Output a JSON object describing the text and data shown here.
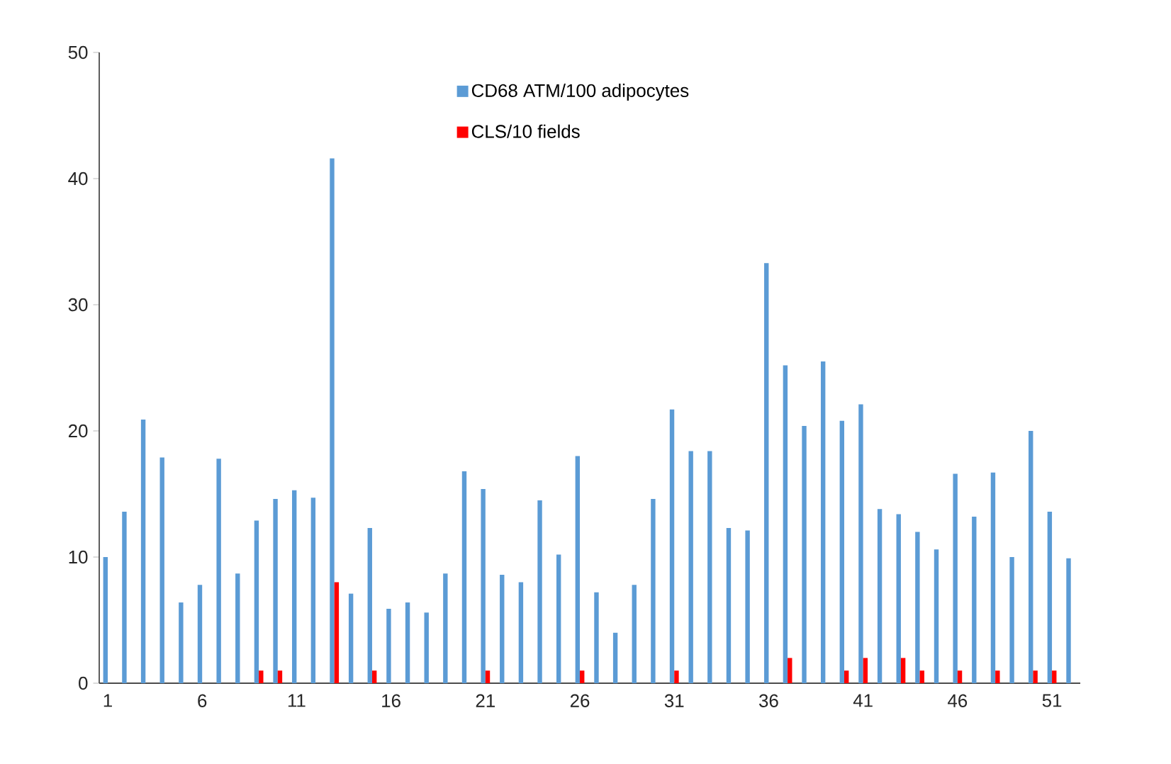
{
  "chart_data": {
    "type": "bar",
    "categories": [
      "1",
      null,
      null,
      null,
      null,
      "6",
      null,
      null,
      null,
      null,
      "11",
      null,
      null,
      null,
      null,
      "16",
      null,
      null,
      null,
      null,
      "21",
      null,
      null,
      null,
      null,
      "26",
      null,
      null,
      null,
      null,
      "31",
      null,
      null,
      null,
      null,
      "36",
      null,
      null,
      null,
      null,
      "41",
      null,
      null,
      null,
      null,
      "46",
      null,
      null,
      null,
      null,
      "51",
      null
    ],
    "series": [
      {
        "name": "CD68 ATM/100 adipocytes",
        "color": "#5b9bd5",
        "values": [
          10,
          13.6,
          20.9,
          17.9,
          6.4,
          7.8,
          17.8,
          8.7,
          12.9,
          14.6,
          15.3,
          14.7,
          41.6,
          7.1,
          12.3,
          5.9,
          6.4,
          5.6,
          8.7,
          16.8,
          15.4,
          8.6,
          8.0,
          14.5,
          10.2,
          18.0,
          7.2,
          4.0,
          7.8,
          14.6,
          21.7,
          18.4,
          18.4,
          12.3,
          12.1,
          33.3,
          25.2,
          20.4,
          25.5,
          20.8,
          22.1,
          13.8,
          13.4,
          12.0,
          10.6,
          16.6,
          13.2,
          16.7,
          10.0,
          20.0,
          13.6,
          9.9
        ]
      },
      {
        "name": "CLS/10 fields",
        "color": "#ff0000",
        "values": [
          0,
          0,
          0,
          0,
          0,
          0,
          0,
          0,
          1,
          1,
          0,
          0,
          8,
          0,
          1,
          0,
          0,
          0,
          0,
          0,
          1,
          0,
          0,
          0,
          0,
          1,
          0,
          0,
          0,
          0,
          1,
          0,
          0,
          0,
          0,
          0,
          2,
          0,
          0,
          1,
          2,
          0,
          2,
          1,
          0,
          1,
          0,
          1,
          0,
          1,
          1,
          0
        ]
      }
    ],
    "ylim": [
      0,
      50
    ],
    "yticks": [
      0,
      10,
      20,
      30,
      40,
      50
    ],
    "grid": false,
    "legend": "top"
  }
}
